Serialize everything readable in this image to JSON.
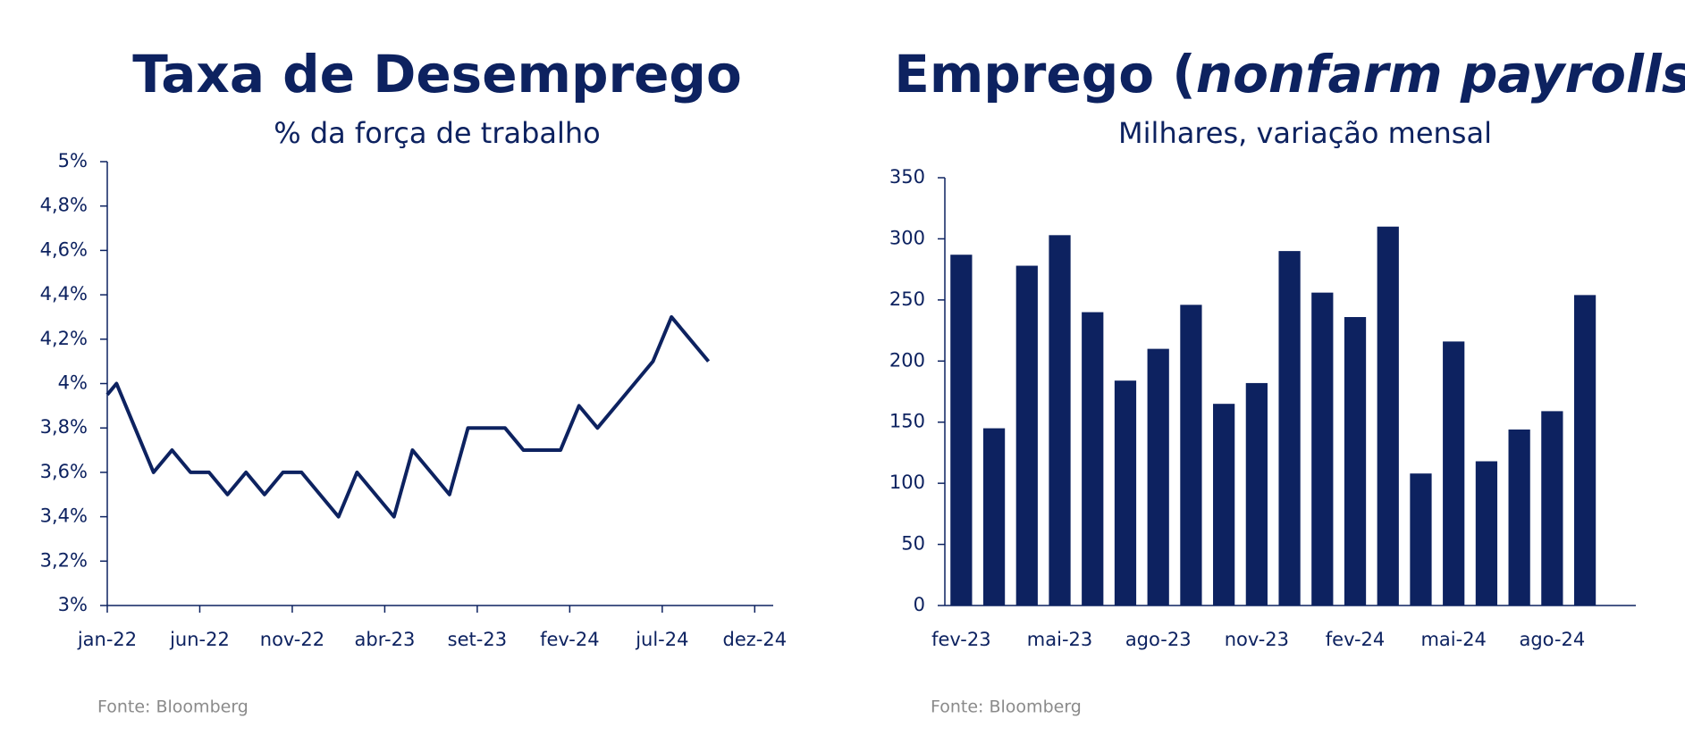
{
  "charts": [
    {
      "type": "line",
      "title": "Taxa de Desemprego",
      "subtitle": "% da força de trabalho",
      "source": "Fonte: Bloomberg",
      "x": [
        0,
        0.5,
        1.5,
        2.5,
        3.5,
        4.5,
        5.5,
        6.5,
        7.5,
        8.5,
        9.5,
        10.5,
        11.5,
        12.5,
        13.5,
        14.5,
        15.5,
        16.5,
        17.5,
        18.5,
        19.5,
        20.5,
        21.5,
        22.5,
        23.5,
        24.5,
        25.5,
        26.5,
        27.5,
        28.5,
        29.5,
        30.5,
        31.5,
        32.5
      ],
      "series": [
        {
          "color": "#0d2260",
          "values": [
            3.95,
            4.0,
            3.8,
            3.6,
            3.7,
            3.6,
            3.6,
            3.5,
            3.6,
            3.5,
            3.6,
            3.6,
            3.5,
            3.4,
            3.6,
            3.5,
            3.4,
            3.7,
            3.6,
            3.5,
            3.8,
            3.8,
            3.8,
            3.7,
            3.7,
            3.7,
            3.9,
            3.8,
            3.9,
            4.0,
            4.1,
            4.3,
            4.2,
            4.1
          ]
        }
      ],
      "xlim": [
        0,
        36
      ],
      "xticks": [
        {
          "value": 0,
          "label": "jan-22"
        },
        {
          "value": 5,
          "label": "jun-22"
        },
        {
          "value": 10,
          "label": "nov-22"
        },
        {
          "value": 15,
          "label": "abr-23"
        },
        {
          "value": 20,
          "label": "set-23"
        },
        {
          "value": 25,
          "label": "fev-24"
        },
        {
          "value": 30,
          "label": "jul-24"
        },
        {
          "value": 35,
          "label": "dez-24"
        }
      ],
      "ylim": [
        3,
        5
      ],
      "yticks": [
        {
          "value": 3,
          "label": "3%"
        },
        {
          "value": 3.2,
          "label": "3,2%"
        },
        {
          "value": 3.4,
          "label": "3,4%"
        },
        {
          "value": 3.6,
          "label": "3,6%"
        },
        {
          "value": 3.8,
          "label": "3,8%"
        },
        {
          "value": 4,
          "label": "4%"
        },
        {
          "value": 4.2,
          "label": "4,2%"
        },
        {
          "value": 4.4,
          "label": "4,4%"
        },
        {
          "value": 4.6,
          "label": "4,6%"
        },
        {
          "value": 4.8,
          "label": "4,8%"
        },
        {
          "value": 5,
          "label": "5%"
        }
      ]
    },
    {
      "type": "bar",
      "title": [
        "Emprego (",
        "nonfarm payrolls",
        ")"
      ],
      "subtitle": "Milhares, variação mensal",
      "source": "Fonte: Bloomberg",
      "categories": [
        "fev-23",
        null,
        null,
        "mai-23",
        null,
        null,
        "ago-23",
        null,
        null,
        "nov-23",
        null,
        null,
        "fev-24",
        null,
        null,
        "mai-24",
        null,
        null,
        "ago-24",
        null
      ],
      "values": [
        287,
        145,
        278,
        303,
        240,
        184,
        210,
        246,
        165,
        182,
        290,
        256,
        236,
        310,
        108,
        216,
        118,
        144,
        159,
        254
      ],
      "color": "#0d2260",
      "ylim": [
        0,
        350
      ],
      "yticks": [
        0,
        50,
        100,
        150,
        200,
        250,
        300,
        350
      ]
    }
  ]
}
